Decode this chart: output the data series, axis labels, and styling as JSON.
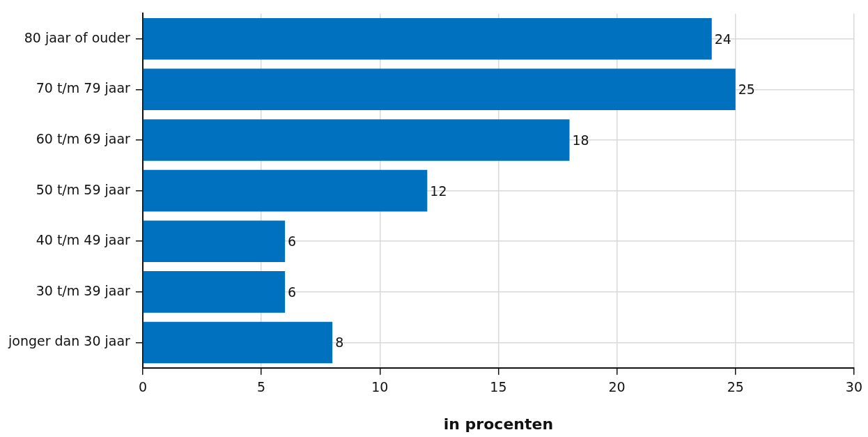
{
  "chart_data": {
    "type": "bar",
    "orientation": "horizontal",
    "xlabel": "in procenten",
    "categories": [
      "80 jaar of ouder",
      "70 t/m 79 jaar",
      "60 t/m 69 jaar",
      "50 t/m 59 jaar",
      "40 t/m 49 jaar",
      "30 t/m 39 jaar",
      "jonger dan 30 jaar"
    ],
    "values": [
      24,
      25,
      18,
      12,
      6,
      6,
      8
    ],
    "color": "#0071bf",
    "xlim": [
      0,
      30
    ],
    "xticks": [
      0,
      5,
      10,
      15,
      20,
      25,
      30
    ],
    "grid": true,
    "data_labels": true,
    "legend": false
  }
}
